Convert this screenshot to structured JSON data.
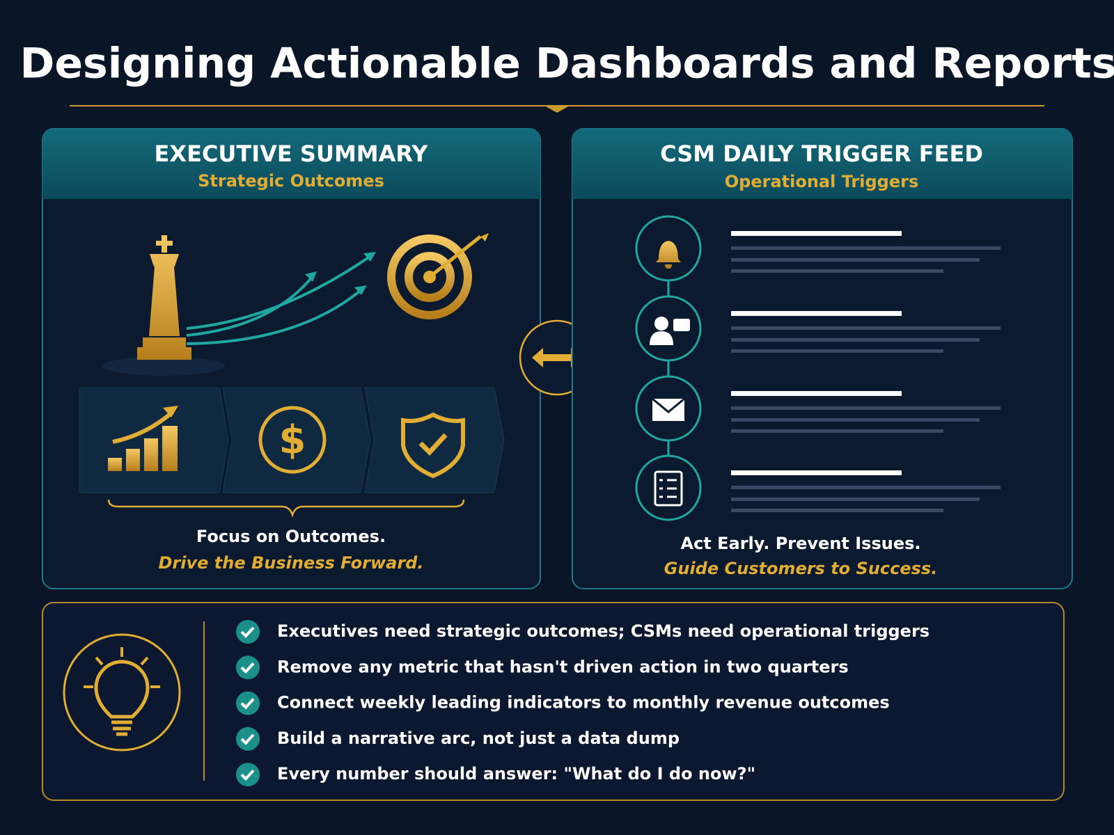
{
  "title": "Designing Actionable Dashboards and Reports",
  "panels": [
    {
      "title": "EXECUTIVE SUMMARY",
      "subtitle": "Strategic Outcomes",
      "caption": "Focus on Outcomes.",
      "tagline": "Drive the Business Forward."
    },
    {
      "title": "CSM DAILY TRIGGER FEED",
      "subtitle": "Operational Triggers",
      "caption": "Act Early. Prevent Issues.",
      "tagline": "Guide Customers to Success."
    }
  ],
  "takeaways": [
    "Executives need strategic outcomes; CSMs need operational triggers",
    "Remove any metric that hasn't driven action in two quarters",
    "Connect weekly leading indicators to monthly revenue outcomes",
    "Build a narrative arc, not just a data dump",
    "Every number should answer: \"What do I do now?\""
  ]
}
